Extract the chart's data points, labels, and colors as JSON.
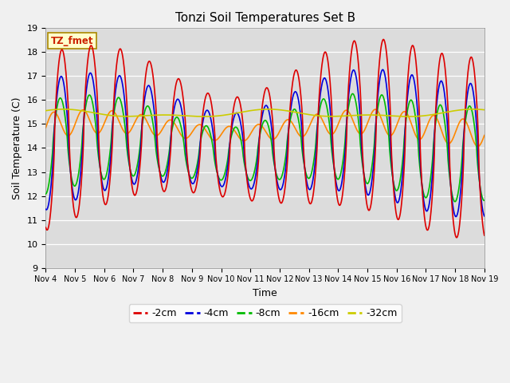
{
  "title": "Tonzi Soil Temperatures Set B",
  "xlabel": "Time",
  "ylabel": "Soil Temperature (C)",
  "ylim": [
    9.0,
    19.0
  ],
  "yticks": [
    9.0,
    10.0,
    11.0,
    12.0,
    13.0,
    14.0,
    15.0,
    16.0,
    17.0,
    18.0,
    19.0
  ],
  "xtick_labels": [
    "Nov 4",
    "Nov 5",
    "Nov 6",
    "Nov 7",
    "Nov 8",
    "Nov 9",
    "Nov 10",
    "Nov 11",
    "Nov 12",
    "Nov 13",
    "Nov 14",
    "Nov 15",
    "Nov 16",
    "Nov 17",
    "Nov 18",
    "Nov 19"
  ],
  "label_box_text": "TZ_fmet",
  "label_box_color": "#ffffcc",
  "label_box_edge": "#aa8800",
  "series": {
    "-2cm": {
      "color": "#dd0000",
      "lw": 1.2
    },
    "-4cm": {
      "color": "#0000dd",
      "lw": 1.2
    },
    "-8cm": {
      "color": "#00bb00",
      "lw": 1.2
    },
    "-16cm": {
      "color": "#ff8800",
      "lw": 1.2
    },
    "-32cm": {
      "color": "#cccc00",
      "lw": 1.2
    }
  },
  "num_days": 15,
  "fig_facecolor": "#f0f0f0",
  "ax_facecolor": "#dcdcdc"
}
